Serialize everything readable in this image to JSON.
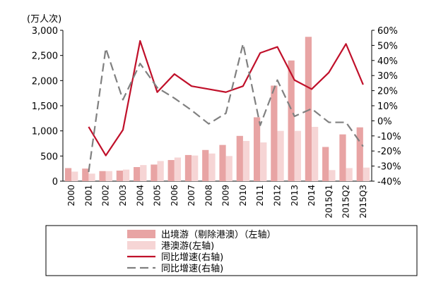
{
  "chart_data": {
    "type": "bar",
    "unit_label": "(万人次)",
    "categories": [
      "2000",
      "2001",
      "2002",
      "2003",
      "2004",
      "2005",
      "2006",
      "2007",
      "2008",
      "2009",
      "2010",
      "2011",
      "2012",
      "2013",
      "2014",
      "2015Q1",
      "2015Q2",
      "2015Q3"
    ],
    "left_axis": {
      "ylim": [
        0,
        3000
      ],
      "ticks": [
        "0",
        "500",
        "1,000",
        "1,500",
        "2,000",
        "2,500",
        "3,000"
      ]
    },
    "right_axis": {
      "ylim": [
        -40,
        60
      ],
      "ticks": [
        "-40%",
        "-30%",
        "-20%",
        "-10%",
        "0%",
        "10%",
        "20%",
        "30%",
        "40%",
        "50%",
        "60%"
      ]
    },
    "series": [
      {
        "name": "出境游（剔除港澳）（左轴）",
        "kind": "bar",
        "axis": "left",
        "color": "#e8a4a4",
        "values": [
          260,
          250,
          200,
          210,
          280,
          330,
          420,
          520,
          620,
          720,
          900,
          1270,
          1900,
          2400,
          2870,
          680,
          930,
          1070
        ]
      },
      {
        "name": "港澳游(左轴)",
        "kind": "bar",
        "axis": "left",
        "color": "#f6d5d5",
        "values": [
          190,
          150,
          200,
          230,
          320,
          400,
          470,
          510,
          550,
          500,
          800,
          770,
          1000,
          1000,
          1080,
          220,
          260,
          270
        ]
      },
      {
        "name": "同比增速(右轴)",
        "kind": "line",
        "axis": "right",
        "color": "#c0102a",
        "dash": false,
        "values": [
          null,
          -4,
          -23,
          -6,
          53,
          19,
          31,
          23,
          21,
          19,
          23,
          45,
          49,
          27,
          21,
          32,
          51,
          24
        ]
      },
      {
        "name": "同比增速(右轴)",
        "kind": "line",
        "axis": "right",
        "color": "#808080",
        "dash": true,
        "values": [
          null,
          -34,
          48,
          14,
          38,
          22,
          15,
          7,
          -2,
          5,
          51,
          -3,
          27,
          3,
          8,
          -1,
          -1,
          -17
        ]
      }
    ]
  }
}
